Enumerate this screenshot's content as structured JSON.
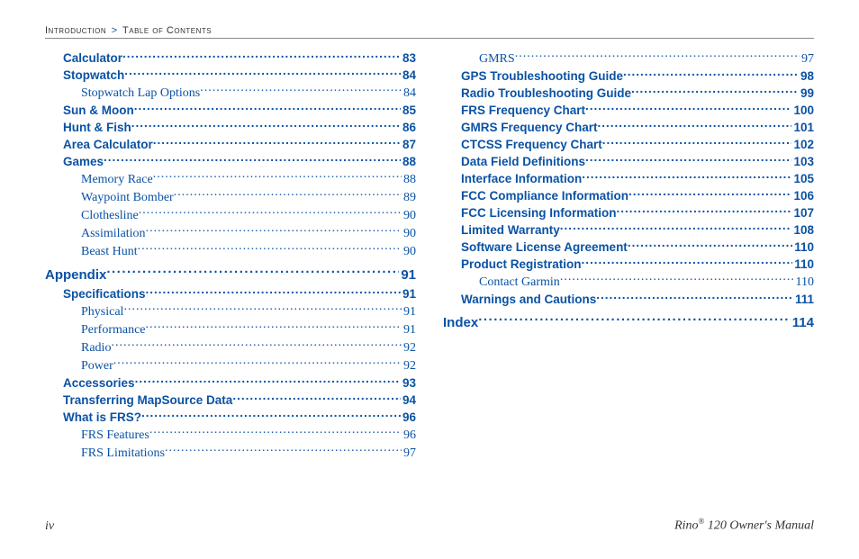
{
  "breadcrumb": {
    "a": "Introduction",
    "b": "Table of Contents"
  },
  "footer": {
    "left": "iv",
    "right_pre": "Rino",
    "right_sup": "®",
    "right_post": " 120 Owner's Manual"
  },
  "columns": [
    [
      {
        "title": "Calculator",
        "page": "83",
        "level": 1,
        "style": "section"
      },
      {
        "title": "Stopwatch",
        "page": "84",
        "level": 1,
        "style": "section"
      },
      {
        "title": "Stopwatch Lap Options",
        "page": "84",
        "level": 2,
        "style": "sub"
      },
      {
        "title": "Sun & Moon",
        "page": "85",
        "level": 1,
        "style": "section"
      },
      {
        "title": "Hunt & Fish",
        "page": "86",
        "level": 1,
        "style": "section"
      },
      {
        "title": "Area Calculator",
        "page": "87",
        "level": 1,
        "style": "section"
      },
      {
        "title": "Games",
        "page": "88",
        "level": 1,
        "style": "section"
      },
      {
        "title": "Memory Race",
        "page": "88",
        "level": 2,
        "style": "sub"
      },
      {
        "title": "Waypoint Bomber",
        "page": "89",
        "level": 2,
        "style": "sub"
      },
      {
        "title": "Clothesline",
        "page": "90",
        "level": 2,
        "style": "sub"
      },
      {
        "title": "Assimilation",
        "page": "90",
        "level": 2,
        "style": "sub"
      },
      {
        "title": "Beast Hunt",
        "page": "90",
        "level": 2,
        "style": "sub"
      },
      {
        "spacer": true
      },
      {
        "title": "Appendix",
        "page": "91",
        "level": 0,
        "style": "chapter"
      },
      {
        "title": "Speciﬁcations",
        "page": "91",
        "level": 1,
        "style": "section"
      },
      {
        "title": "Physical",
        "page": "91",
        "level": 2,
        "style": "sub"
      },
      {
        "title": "Performance",
        "page": "91",
        "level": 2,
        "style": "sub"
      },
      {
        "title": "Radio",
        "page": "92",
        "level": 2,
        "style": "sub"
      },
      {
        "title": "Power",
        "page": "92",
        "level": 2,
        "style": "sub"
      },
      {
        "title": "Accessories",
        "page": "93",
        "level": 1,
        "style": "section"
      },
      {
        "title": "Transferring MapSource Data",
        "page": "94",
        "level": 1,
        "style": "section"
      },
      {
        "title": "What is FRS?",
        "page": "96",
        "level": 1,
        "style": "section"
      },
      {
        "title": "FRS Features",
        "page": "96",
        "level": 2,
        "style": "sub"
      },
      {
        "title": "FRS Limitations",
        "page": "97",
        "level": 2,
        "style": "sub"
      }
    ],
    [
      {
        "title": "GMRS",
        "page": "97",
        "level": 2,
        "style": "sub"
      },
      {
        "title": "GPS Troubleshooting Guide",
        "page": "98",
        "level": 1,
        "style": "section"
      },
      {
        "title": "Radio Troubleshooting Guide",
        "page": "99",
        "level": 1,
        "style": "section"
      },
      {
        "title": "FRS Frequency Chart",
        "page": "100",
        "level": 1,
        "style": "section"
      },
      {
        "title": "GMRS Frequency Chart",
        "page": "101",
        "level": 1,
        "style": "section"
      },
      {
        "title": "CTCSS Frequency Chart",
        "page": "102",
        "level": 1,
        "style": "section"
      },
      {
        "title": "Data Field Deﬁnitions",
        "page": "103",
        "level": 1,
        "style": "section"
      },
      {
        "title": "Interface Information",
        "page": "105",
        "level": 1,
        "style": "section"
      },
      {
        "title": "FCC Compliance Information",
        "page": "106",
        "level": 1,
        "style": "section"
      },
      {
        "title": "FCC Licensing Information",
        "page": "107",
        "level": 1,
        "style": "section"
      },
      {
        "title": "Limited Warranty",
        "page": "108",
        "level": 1,
        "style": "section"
      },
      {
        "title": "Software License Agreement",
        "page": "110",
        "level": 1,
        "style": "section"
      },
      {
        "title": "Product Registration",
        "page": "110",
        "level": 1,
        "style": "section"
      },
      {
        "title": "Contact Garmin",
        "page": "110",
        "level": 2,
        "style": "sub"
      },
      {
        "title": "Warnings and Cautions",
        "page": "111",
        "level": 1,
        "style": "section"
      },
      {
        "spacer": true
      },
      {
        "title": "Index",
        "page": "114",
        "level": 0,
        "style": "chapter"
      }
    ]
  ],
  "styles": {
    "text_color": "#0a52a4",
    "background_color": "#ffffff",
    "divider_color": "#888888"
  }
}
